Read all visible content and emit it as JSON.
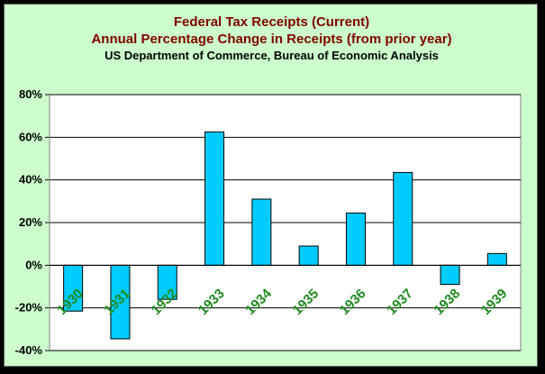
{
  "chart_data": {
    "type": "bar",
    "title": "Federal Tax Receipts (Current)",
    "subtitle": "Annual Percentage Change in Receipts (from prior year)",
    "source": "US Department of Commerce, Bureau of Economic Analysis",
    "categories": [
      "1930",
      "1931",
      "1932",
      "1933",
      "1934",
      "1935",
      "1936",
      "1937",
      "1938",
      "1939"
    ],
    "values": [
      -21.5,
      -34.5,
      -16,
      62.5,
      31,
      9,
      24.5,
      43.5,
      -9,
      5.5
    ],
    "ylim": [
      -40,
      80
    ],
    "yticks": [
      "80%",
      "60%",
      "40%",
      "20%",
      "0%",
      "-20%",
      "-40%"
    ],
    "grid": true,
    "colors": {
      "bar_fill": "#00ccff",
      "bar_stroke": "#000000",
      "background": "#ccffcc",
      "plot_background": "#ffffff",
      "title_color": "#800000",
      "tick_label_color": "#1f8a1f"
    }
  }
}
